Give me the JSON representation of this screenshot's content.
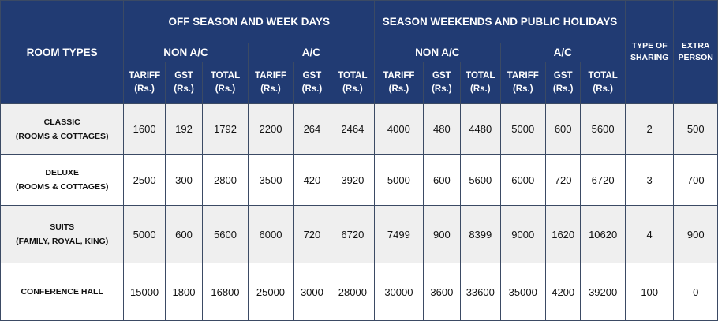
{
  "headers": {
    "room_types": "ROOM TYPES",
    "off_season": "OFF SEASON AND WEEK DAYS",
    "season": "SEASON WEEKENDS AND PUBLIC HOLIDAYS",
    "non_ac": "NON A/C",
    "ac": "A/C",
    "type_of_sharing": [
      "TYPE OF",
      "SHARING"
    ],
    "extra_person": [
      "EXTRA",
      "PERSON"
    ],
    "tariff": "TARIFF",
    "gst": "GST",
    "total": "TOTAL",
    "unit": "(Rs.)"
  },
  "rows": [
    {
      "name": [
        "CLASSIC",
        "(ROOMS & COTTAGES)"
      ],
      "values": [
        "1600",
        "192",
        "1792",
        "2200",
        "264",
        "2464",
        "4000",
        "480",
        "4480",
        "5000",
        "600",
        "5600",
        "2",
        "500"
      ]
    },
    {
      "name": [
        "DELUXE",
        "(ROOMS & COTTAGES)"
      ],
      "values": [
        "2500",
        "300",
        "2800",
        "3500",
        "420",
        "3920",
        "5000",
        "600",
        "5600",
        "6000",
        "720",
        "6720",
        "3",
        "700"
      ]
    },
    {
      "name": [
        "SUITS",
        "(FAMILY, ROYAL, KING)"
      ],
      "values": [
        "5000",
        "600",
        "5600",
        "6000",
        "720",
        "6720",
        "7499",
        "900",
        "8399",
        "9000",
        "1620",
        "10620",
        "4",
        "900"
      ]
    },
    {
      "name": [
        "CONFERENCE HALL"
      ],
      "values": [
        "15000",
        "1800",
        "16800",
        "25000",
        "3000",
        "28000",
        "30000",
        "3600",
        "33600",
        "35000",
        "4200",
        "39200",
        "100",
        "0"
      ]
    }
  ]
}
